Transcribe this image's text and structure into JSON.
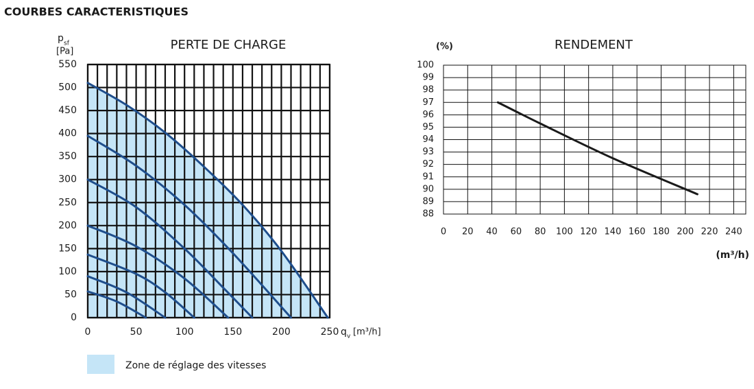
{
  "header": {
    "title": "COURBES CARACTERISTIQUES"
  },
  "chart_data": [
    {
      "type": "line",
      "title": "PERTE DE CHARGE",
      "y_label_symbol": "p",
      "y_label_subscript": "sf",
      "y_label_unit": "[Pa]",
      "x_label_symbol": "q",
      "x_label_subscript": "v",
      "x_label_unit": "[m³/h]",
      "xlim": [
        0,
        250
      ],
      "xticks": [
        0,
        50,
        100,
        150,
        200,
        250
      ],
      "ylim": [
        0,
        550
      ],
      "yticks": [
        0,
        50,
        100,
        150,
        200,
        250,
        300,
        350,
        400,
        450,
        500,
        550
      ],
      "grid": true,
      "zone": {
        "label": "Zone de réglage des vitesses",
        "color": "#c5e5f7"
      },
      "series": [
        {
          "color": "#1f4e8c",
          "x": [
            0,
            40,
            80,
            120,
            160,
            200,
            248
          ],
          "values": [
            510,
            462,
            402,
            328,
            245,
            145,
            0
          ]
        },
        {
          "color": "#1f4e8c",
          "x": [
            0,
            50,
            100,
            150,
            210
          ],
          "values": [
            395,
            330,
            245,
            140,
            0
          ]
        },
        {
          "color": "#1f4e8c",
          "x": [
            0,
            50,
            100,
            140,
            170
          ],
          "values": [
            300,
            240,
            150,
            65,
            0
          ]
        },
        {
          "color": "#1f4e8c",
          "x": [
            0,
            50,
            100,
            145
          ],
          "values": [
            200,
            155,
            85,
            0
          ]
        },
        {
          "color": "#1f4e8c",
          "x": [
            0,
            50,
            80,
            110
          ],
          "values": [
            137,
            95,
            55,
            0
          ]
        },
        {
          "color": "#1f4e8c",
          "x": [
            0,
            40,
            80
          ],
          "values": [
            90,
            55,
            0
          ]
        },
        {
          "color": "#1f4e8c",
          "x": [
            0,
            30,
            60
          ],
          "values": [
            57,
            35,
            0
          ]
        }
      ]
    },
    {
      "type": "line",
      "title": "RENDEMENT",
      "y_label": "(%)",
      "x_label": "(m³/h)",
      "xlim": [
        0,
        250
      ],
      "xticks": [
        0,
        20,
        40,
        60,
        80,
        100,
        120,
        140,
        160,
        180,
        200,
        220,
        240
      ],
      "ylim": [
        88,
        100
      ],
      "yticks": [
        88,
        89,
        90,
        91,
        92,
        93,
        94,
        95,
        96,
        97,
        98,
        99,
        100
      ],
      "grid": true,
      "series": [
        {
          "color": "#1a1a1a",
          "x": [
            45,
            80,
            140,
            210
          ],
          "values": [
            97,
            95.3,
            92.5,
            89.6
          ]
        }
      ]
    }
  ]
}
